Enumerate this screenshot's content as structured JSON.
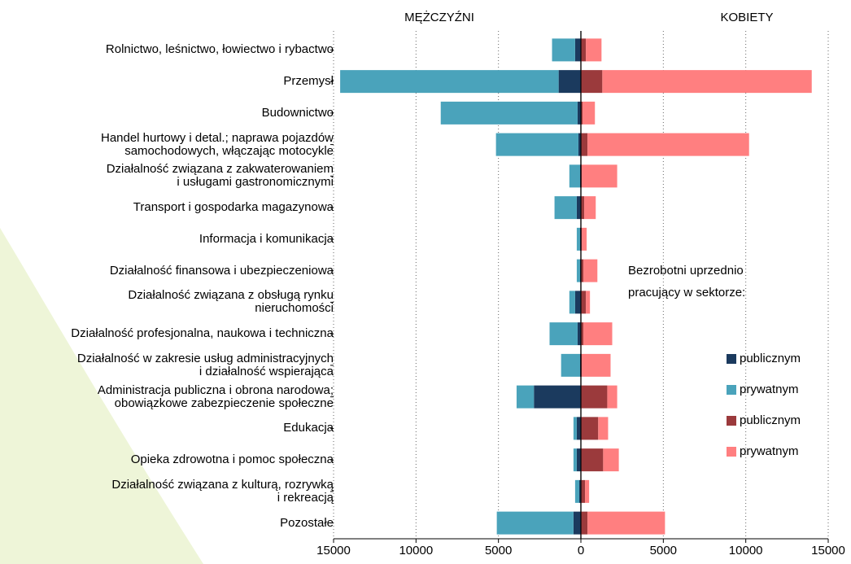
{
  "chart_data": {
    "type": "butterfly_bar",
    "headers": [
      "MĘŻCZYŹNI",
      "KOBIETY"
    ],
    "legend_title": [
      "Bezrobotni uprzednio",
      "pracujący w sektorze:"
    ],
    "categories": [
      "Rolnictwo, leśnictwo, łowiectwo i rybactwo",
      "Przemysł",
      "Budownictwo",
      "Handel hurtowy i detal.; naprawa pojazdów\nsamochodowych, włączając motocykle",
      "Działalność związana z zakwaterowaniem\ni usługami gastronomicznymi",
      "Transport i gospodarka magazynowa",
      "Informacja i komunikacja",
      "Działalność finansowa i ubezpieczeniowa",
      "Działalność związana z obsługą rynku\nnieruchomości",
      "Działalność profesjonalna, naukowa i techniczna",
      "Działalność w zakresie usług administracyjnych\ni działalność wspierająca",
      "Administracja publiczna i obrona narodowa;\nobowiązkowe zabezpieczenie społeczne",
      "Edukacja",
      "Opieka zdrowotna i pomoc społeczna",
      "Działalność związana z kulturą, rozrywką\ni rekreacją",
      "Pozostałe"
    ],
    "series": [
      {
        "name": "publicznym",
        "side": "left",
        "color": "#1b3a5e",
        "values": [
          350,
          1350,
          200,
          150,
          50,
          250,
          50,
          50,
          350,
          200,
          50,
          2850,
          250,
          250,
          100,
          450
        ]
      },
      {
        "name": "prywatnym",
        "side": "left",
        "color": "#4aa3bb",
        "values": [
          1400,
          13250,
          8300,
          5000,
          650,
          1350,
          200,
          200,
          350,
          1700,
          1150,
          1050,
          200,
          200,
          250,
          4650
        ]
      },
      {
        "name": "publicznym",
        "side": "right",
        "color": "#9b3a3c",
        "values": [
          300,
          1300,
          100,
          400,
          50,
          200,
          50,
          150,
          300,
          150,
          50,
          1600,
          1050,
          1350,
          250,
          400
        ]
      },
      {
        "name": "prywatnym",
        "side": "right",
        "color": "#ff7f80",
        "values": [
          950,
          12700,
          750,
          9800,
          2150,
          700,
          300,
          850,
          250,
          1750,
          1750,
          600,
          600,
          950,
          250,
          4700
        ]
      }
    ],
    "xlim": [
      -15000,
      15000
    ],
    "xticks": [
      {
        "value": -15000,
        "label": "15000"
      },
      {
        "value": -10000,
        "label": "10000"
      },
      {
        "value": -5000,
        "label": "5000"
      },
      0,
      5000,
      10000,
      15000
    ],
    "grid": true
  }
}
